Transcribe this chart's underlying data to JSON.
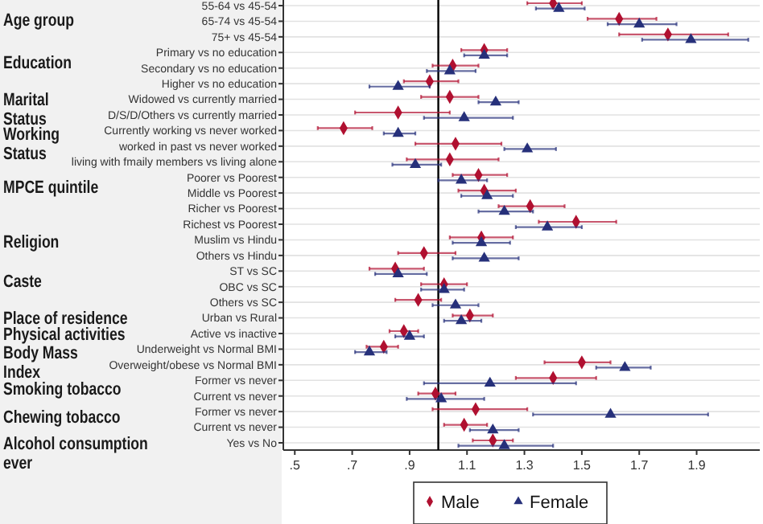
{
  "chart_data": {
    "type": "scatter",
    "orientation": "horizontal",
    "categories": [
      "55-64 vs 45-54",
      "65-74 vs 45-54",
      "75+ vs 45-54",
      "Primary vs no education",
      "Secondary vs no education",
      "Higher vs no education",
      "Widowed vs currently married",
      "D/S/D/Others vs currently married",
      "Currently working vs never worked",
      "worked in past vs never worked",
      "living with fmaily members vs living alone",
      "Poorer vs Poorest",
      "Middle  vs Poorest",
      "Richer vs Poorest",
      "Richest  vs Poorest",
      "Muslim vs Hindu",
      "Others vs Hindu",
      "ST vs SC",
      "OBC vs SC",
      "Others vs SC",
      "Urban vs Rural",
      "Active vs inactive",
      "Underweight vs Normal BMI",
      "Overweight/obese vs Normal BMI",
      "Former vs never",
      "Current vs never",
      "Former vs never",
      "Current vs never",
      "Yes vs No"
    ],
    "series": [
      {
        "name": "Male",
        "color": "#b01030",
        "marker": "diamond",
        "values": [
          1.4,
          1.63,
          1.8,
          1.16,
          1.05,
          0.97,
          1.04,
          0.86,
          0.67,
          1.06,
          1.04,
          1.14,
          1.16,
          1.32,
          1.48,
          1.15,
          0.95,
          0.85,
          1.02,
          0.93,
          1.11,
          0.88,
          0.81,
          1.5,
          1.4,
          0.99,
          1.13,
          1.09,
          1.19
        ],
        "errors": [
          [
            1.31,
            1.5
          ],
          [
            1.52,
            1.76
          ],
          [
            1.63,
            2.01
          ],
          [
            1.08,
            1.24
          ],
          [
            0.98,
            1.14
          ],
          [
            0.88,
            1.07
          ],
          [
            0.94,
            1.14
          ],
          [
            0.71,
            1.04
          ],
          [
            0.58,
            0.77
          ],
          [
            0.92,
            1.22
          ],
          [
            0.89,
            1.21
          ],
          [
            1.05,
            1.24
          ],
          [
            1.07,
            1.27
          ],
          [
            1.21,
            1.44
          ],
          [
            1.35,
            1.62
          ],
          [
            1.04,
            1.26
          ],
          [
            0.86,
            1.06
          ],
          [
            0.76,
            0.95
          ],
          [
            0.94,
            1.1
          ],
          [
            0.85,
            1.01
          ],
          [
            1.05,
            1.19
          ],
          [
            0.83,
            0.93
          ],
          [
            0.75,
            0.86
          ],
          [
            1.37,
            1.6
          ],
          [
            1.27,
            1.55
          ],
          [
            0.93,
            1.06
          ],
          [
            0.98,
            1.31
          ],
          [
            1.02,
            1.17
          ],
          [
            1.12,
            1.26
          ]
        ]
      },
      {
        "name": "Female",
        "color": "#26307a",
        "marker": "triangle",
        "values": [
          1.42,
          1.7,
          1.88,
          1.16,
          1.04,
          0.86,
          1.2,
          1.09,
          0.86,
          1.31,
          0.92,
          1.08,
          1.17,
          1.23,
          1.38,
          1.15,
          1.16,
          0.86,
          1.02,
          1.06,
          1.08,
          0.9,
          0.76,
          1.65,
          1.18,
          1.01,
          1.6,
          1.19,
          1.23
        ],
        "errors": [
          [
            1.34,
            1.51
          ],
          [
            1.59,
            1.83
          ],
          [
            1.71,
            2.08
          ],
          [
            1.09,
            1.24
          ],
          [
            0.96,
            1.13
          ],
          [
            0.76,
            0.97
          ],
          [
            1.14,
            1.28
          ],
          [
            0.95,
            1.26
          ],
          [
            0.81,
            0.92
          ],
          [
            1.23,
            1.41
          ],
          [
            0.84,
            1.01
          ],
          [
            1.0,
            1.17
          ],
          [
            1.08,
            1.26
          ],
          [
            1.14,
            1.33
          ],
          [
            1.27,
            1.5
          ],
          [
            1.05,
            1.25
          ],
          [
            1.05,
            1.28
          ],
          [
            0.78,
            0.96
          ],
          [
            0.94,
            1.09
          ],
          [
            0.98,
            1.14
          ],
          [
            1.02,
            1.15
          ],
          [
            0.85,
            0.95
          ],
          [
            0.71,
            0.82
          ],
          [
            1.55,
            1.74
          ],
          [
            0.95,
            1.48
          ],
          [
            0.89,
            1.16
          ],
          [
            1.33,
            1.94
          ],
          [
            1.11,
            1.28
          ],
          [
            1.07,
            1.4
          ]
        ]
      }
    ],
    "xlim": [
      0.46,
      2.12
    ],
    "xticks": [
      {
        "value": 0.5,
        "label": ".5"
      },
      {
        "value": 0.7,
        "label": ".7"
      },
      {
        "value": 0.9,
        "label": ".9"
      },
      1.1,
      1.3,
      1.5,
      1.7,
      1.9
    ],
    "ref_lines": [
      {
        "axis": "x",
        "value": 1,
        "color": "#000000"
      }
    ],
    "annotations": [
      "Age group",
      "Education",
      "Marital\nStatus",
      "Working\nStatus",
      "MPCE quintile",
      "Religion",
      "Caste",
      "Place of residence",
      "Physical activities",
      "Body Mass\nIndex",
      "Smoking tobacco",
      "Chewing tobacco",
      "Alcohol consumption\never"
    ],
    "grid": "y",
    "legend": "bottom"
  }
}
